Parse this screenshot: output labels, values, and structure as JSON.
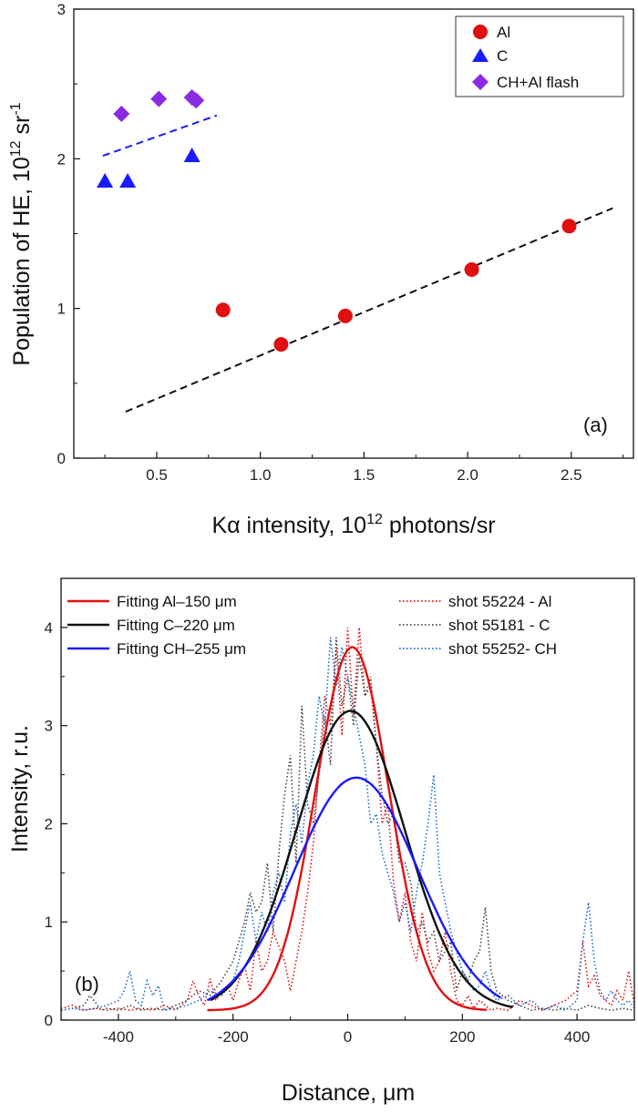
{
  "chart_data": [
    {
      "type": "scatter",
      "panel_label": "(a)",
      "xlabel": "Kα intensity, 10",
      "xlabel_sup": "12",
      "xlabel_tail": " photons/sr",
      "ylabel": "Population of HE, 10",
      "ylabel_sup": "12",
      "ylabel_mid": " sr",
      "ylabel_sup2": "-1",
      "xlim": [
        0.1,
        2.8
      ],
      "ylim": [
        0,
        3
      ],
      "x_ticks": [
        "0.5",
        "1.0",
        "1.5",
        "2.0",
        "2.5"
      ],
      "x_tick_values": [
        0.5,
        1.0,
        1.5,
        2.0,
        2.5
      ],
      "y_ticks": [
        "0",
        "1",
        "2",
        "3"
      ],
      "y_tick_values": [
        0,
        1,
        2,
        3
      ],
      "grid": false,
      "legend_position": "top-right",
      "series": [
        {
          "name": "Al",
          "marker": "circle",
          "color": "#e01010",
          "points": [
            [
              0.82,
              0.99
            ],
            [
              1.1,
              0.76
            ],
            [
              1.41,
              0.95
            ],
            [
              2.02,
              1.26
            ],
            [
              2.49,
              1.55
            ]
          ]
        },
        {
          "name": "C",
          "marker": "triangle",
          "color": "#1a1aff",
          "points": [
            [
              0.25,
              1.85
            ],
            [
              0.36,
              1.85
            ],
            [
              0.67,
              2.02
            ]
          ]
        },
        {
          "name": "CH+Al flash",
          "marker": "diamond",
          "color": "#8a2be2",
          "points": [
            [
              0.33,
              2.3
            ],
            [
              0.51,
              2.4
            ],
            [
              0.67,
              2.41
            ],
            [
              0.69,
              2.39
            ]
          ]
        }
      ],
      "fit_lines": [
        {
          "color": "#111111",
          "x": [
            0.35,
            2.7
          ],
          "y": [
            0.31,
            1.67
          ]
        },
        {
          "color": "#1a1aff",
          "x": [
            0.24,
            0.79
          ],
          "y": [
            2.02,
            2.29
          ]
        }
      ]
    },
    {
      "type": "line",
      "panel_label": "(b)",
      "xlabel": "Distance, μm",
      "ylabel": "Intensity, r.u.",
      "xlim": [
        -500,
        500
      ],
      "ylim": [
        0,
        4.5
      ],
      "x_ticks": [
        "-400",
        "-200",
        "0",
        "200",
        "400"
      ],
      "x_tick_values": [
        -400,
        -200,
        0,
        200,
        400
      ],
      "y_ticks": [
        "0",
        "1",
        "2",
        "3",
        "4"
      ],
      "y_tick_values": [
        0,
        1,
        2,
        3,
        4
      ],
      "grid": false,
      "legend_left": [
        {
          "name": "Fitting Al–150 μm",
          "color": "#e01010",
          "style": "solid"
        },
        {
          "name": "Fitting C–220 μm",
          "color": "#111111",
          "style": "solid"
        },
        {
          "name": "Fitting CH–255 μm",
          "color": "#1a1aff",
          "style": "solid"
        }
      ],
      "legend_right": [
        {
          "name": "shot 55224 - Al",
          "color": "#e01010",
          "style": "dotted"
        },
        {
          "name": "shot 55181 - C",
          "color": "#444444",
          "style": "dotted"
        },
        {
          "name": "shot 55252- CH",
          "color": "#1a6ad0",
          "style": "dotted"
        }
      ],
      "fits": [
        {
          "name": "Fitting Al–150 μm",
          "color": "#e01010",
          "amplitude": 3.7,
          "center": 8,
          "sigma": 64,
          "baseline": 0.1,
          "x_range": [
            -245,
            245
          ]
        },
        {
          "name": "Fitting C–220 μm",
          "color": "#111111",
          "amplitude": 3.05,
          "center": 5,
          "sigma": 94,
          "baseline": 0.1,
          "x_range": [
            -240,
            290
          ]
        },
        {
          "name": "Fitting CH–255 μm",
          "color": "#1a1aff",
          "amplitude": 2.4,
          "center": 15,
          "sigma": 108,
          "baseline": 0.07,
          "x_range": [
            -245,
            270
          ]
        }
      ],
      "shots": [
        {
          "name": "shot 55224 - Al",
          "color": "#e01010",
          "x": [
            -500,
            -480,
            -460,
            -440,
            -420,
            -400,
            -380,
            -360,
            -340,
            -320,
            -300,
            -280,
            -270,
            -260,
            -250,
            -240,
            -230,
            -220,
            -210,
            -200,
            -190,
            -180,
            -170,
            -160,
            -150,
            -140,
            -130,
            -120,
            -110,
            -100,
            -90,
            -80,
            -70,
            -60,
            -50,
            -40,
            -30,
            -20,
            -10,
            0,
            10,
            20,
            30,
            40,
            50,
            60,
            70,
            80,
            90,
            100,
            110,
            120,
            130,
            140,
            150,
            160,
            170,
            180,
            190,
            200,
            210,
            220,
            230,
            240,
            250,
            260,
            280,
            300,
            320,
            340,
            360,
            380,
            400,
            410,
            420,
            430,
            440,
            450,
            460,
            470,
            480,
            490,
            500
          ],
          "y": [
            0.12,
            0.15,
            0.1,
            0.12,
            0.1,
            0.12,
            0.1,
            0.12,
            0.1,
            0.15,
            0.1,
            0.2,
            0.4,
            0.25,
            0.15,
            0.42,
            0.2,
            0.3,
            0.35,
            0.2,
            0.4,
            0.55,
            0.3,
            0.8,
            0.5,
            0.6,
            0.9,
            0.75,
            0.6,
            0.3,
            0.6,
            0.9,
            1.3,
            1.8,
            2.6,
            3.3,
            3.0,
            3.8,
            2.9,
            4.0,
            3.1,
            4.0,
            3.3,
            3.4,
            2.8,
            2.0,
            2.2,
            1.4,
            1.0,
            1.3,
            0.8,
            0.6,
            1.1,
            0.7,
            0.5,
            0.6,
            0.9,
            0.5,
            0.2,
            0.15,
            0.25,
            0.12,
            0.2,
            0.15,
            0.1,
            0.12,
            0.1,
            0.2,
            0.15,
            0.1,
            0.15,
            0.2,
            0.3,
            0.8,
            0.35,
            0.45,
            0.25,
            0.2,
            0.15,
            0.3,
            0.2,
            0.5,
            0.15
          ]
        },
        {
          "name": "shot 55181 - C",
          "color": "#444444",
          "x": [
            -500,
            -480,
            -460,
            -450,
            -440,
            -430,
            -420,
            -400,
            -380,
            -360,
            -340,
            -320,
            -300,
            -280,
            -260,
            -240,
            -220,
            -200,
            -190,
            -180,
            -170,
            -160,
            -150,
            -140,
            -130,
            -120,
            -110,
            -100,
            -90,
            -80,
            -70,
            -60,
            -50,
            -40,
            -30,
            -20,
            -10,
            0,
            10,
            20,
            30,
            40,
            50,
            60,
            70,
            80,
            90,
            100,
            110,
            120,
            130,
            140,
            150,
            160,
            170,
            180,
            190,
            200,
            210,
            220,
            230,
            240,
            250,
            260,
            270,
            280,
            300,
            320,
            340,
            360,
            380,
            400,
            420,
            440,
            460,
            480,
            500
          ],
          "y": [
            0.1,
            0.12,
            0.15,
            0.25,
            0.18,
            0.1,
            0.12,
            0.1,
            0.15,
            0.1,
            0.12,
            0.1,
            0.15,
            0.2,
            0.3,
            0.25,
            0.4,
            0.6,
            0.8,
            1.0,
            1.3,
            1.1,
            1.2,
            1.6,
            0.9,
            1.7,
            2.3,
            2.7,
            1.6,
            3.2,
            2.2,
            2.0,
            2.5,
            3.1,
            2.6,
            3.9,
            3.2,
            3.5,
            3.0,
            3.7,
            3.3,
            3.5,
            2.8,
            2.3,
            2.0,
            2.1,
            1.6,
            1.6,
            1.4,
            0.9,
            1.0,
            0.8,
            0.9,
            0.6,
            0.7,
            0.8,
            0.3,
            0.5,
            0.4,
            0.6,
            0.7,
            1.15,
            0.5,
            0.3,
            0.25,
            0.2,
            0.15,
            0.1,
            0.12,
            0.1,
            0.12,
            0.1,
            0.15,
            0.12,
            0.1,
            0.12,
            0.1
          ]
        },
        {
          "name": "shot 55252- CH",
          "color": "#1a6ad0",
          "x": [
            -500,
            -480,
            -460,
            -440,
            -420,
            -400,
            -390,
            -380,
            -370,
            -360,
            -350,
            -340,
            -330,
            -320,
            -300,
            -280,
            -260,
            -240,
            -220,
            -200,
            -190,
            -180,
            -170,
            -160,
            -150,
            -140,
            -130,
            -120,
            -110,
            -100,
            -90,
            -80,
            -70,
            -60,
            -50,
            -40,
            -30,
            -20,
            -10,
            0,
            10,
            20,
            30,
            40,
            50,
            60,
            70,
            80,
            90,
            100,
            110,
            120,
            130,
            140,
            150,
            160,
            170,
            180,
            190,
            200,
            210,
            220,
            230,
            240,
            250,
            260,
            280,
            300,
            320,
            340,
            360,
            380,
            400,
            410,
            420,
            430,
            440,
            450,
            460,
            470,
            480,
            490,
            500
          ],
          "y": [
            0.1,
            0.12,
            0.1,
            0.12,
            0.15,
            0.2,
            0.3,
            0.5,
            0.2,
            0.15,
            0.4,
            0.25,
            0.35,
            0.1,
            0.12,
            0.15,
            0.2,
            0.3,
            0.25,
            0.4,
            0.6,
            0.9,
            1.2,
            0.8,
            1.1,
            0.9,
            1.3,
            1.5,
            1.2,
            1.9,
            2.2,
            1.8,
            2.4,
            2.7,
            3.3,
            3.0,
            3.9,
            3.4,
            3.8,
            3.5,
            3.2,
            2.9,
            2.6,
            2.0,
            2.1,
            1.7,
            1.5,
            1.3,
            1.0,
            1.2,
            0.9,
            1.3,
            1.6,
            2.0,
            2.5,
            1.5,
            1.2,
            0.9,
            0.7,
            0.5,
            0.4,
            0.3,
            0.35,
            0.5,
            0.3,
            0.2,
            0.25,
            0.15,
            0.2,
            0.1,
            0.15,
            0.1,
            0.2,
            0.8,
            1.2,
            0.6,
            0.3,
            0.2,
            0.3,
            0.2,
            0.15,
            0.2,
            0.12
          ]
        }
      ]
    }
  ]
}
